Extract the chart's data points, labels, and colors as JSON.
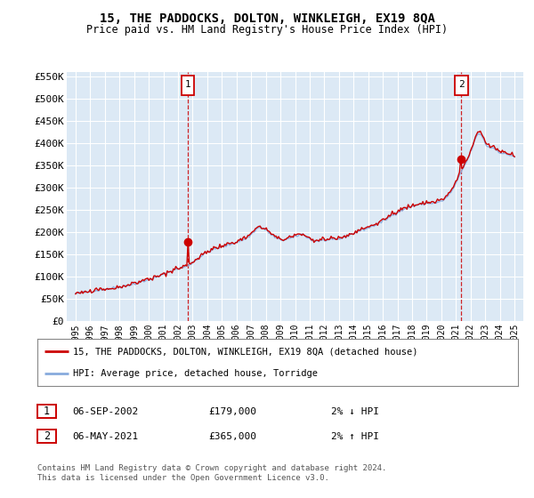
{
  "title": "15, THE PADDOCKS, DOLTON, WINKLEIGH, EX19 8QA",
  "subtitle": "Price paid vs. HM Land Registry's House Price Index (HPI)",
  "legend_line1": "15, THE PADDOCKS, DOLTON, WINKLEIGH, EX19 8QA (detached house)",
  "legend_line2": "HPI: Average price, detached house, Torridge",
  "footnote1": "Contains HM Land Registry data © Crown copyright and database right 2024.",
  "footnote2": "This data is licensed under the Open Government Licence v3.0.",
  "purchase1_date": "06-SEP-2002",
  "purchase1_price": "£179,000",
  "purchase1_hpi": "2% ↓ HPI",
  "purchase2_date": "06-MAY-2021",
  "purchase2_price": "£365,000",
  "purchase2_hpi": "2% ↑ HPI",
  "plot_bg_color": "#dce9f5",
  "grid_color": "#ffffff",
  "line_color_property": "#cc0000",
  "line_color_hpi": "#88aadd",
  "marker_color": "#cc0000",
  "ylim": [
    0,
    560000
  ],
  "yticks": [
    0,
    50000,
    100000,
    150000,
    200000,
    250000,
    300000,
    350000,
    400000,
    450000,
    500000,
    550000
  ],
  "ytick_labels": [
    "£0",
    "£50K",
    "£100K",
    "£150K",
    "£200K",
    "£250K",
    "£300K",
    "£350K",
    "£400K",
    "£450K",
    "£500K",
    "£550K"
  ],
  "purchase1_year": 2002.67,
  "purchase2_year": 2021.35,
  "purchase1_value": 179000,
  "purchase2_value": 365000,
  "box_color": "#cc0000",
  "fig_bg": "#ffffff"
}
